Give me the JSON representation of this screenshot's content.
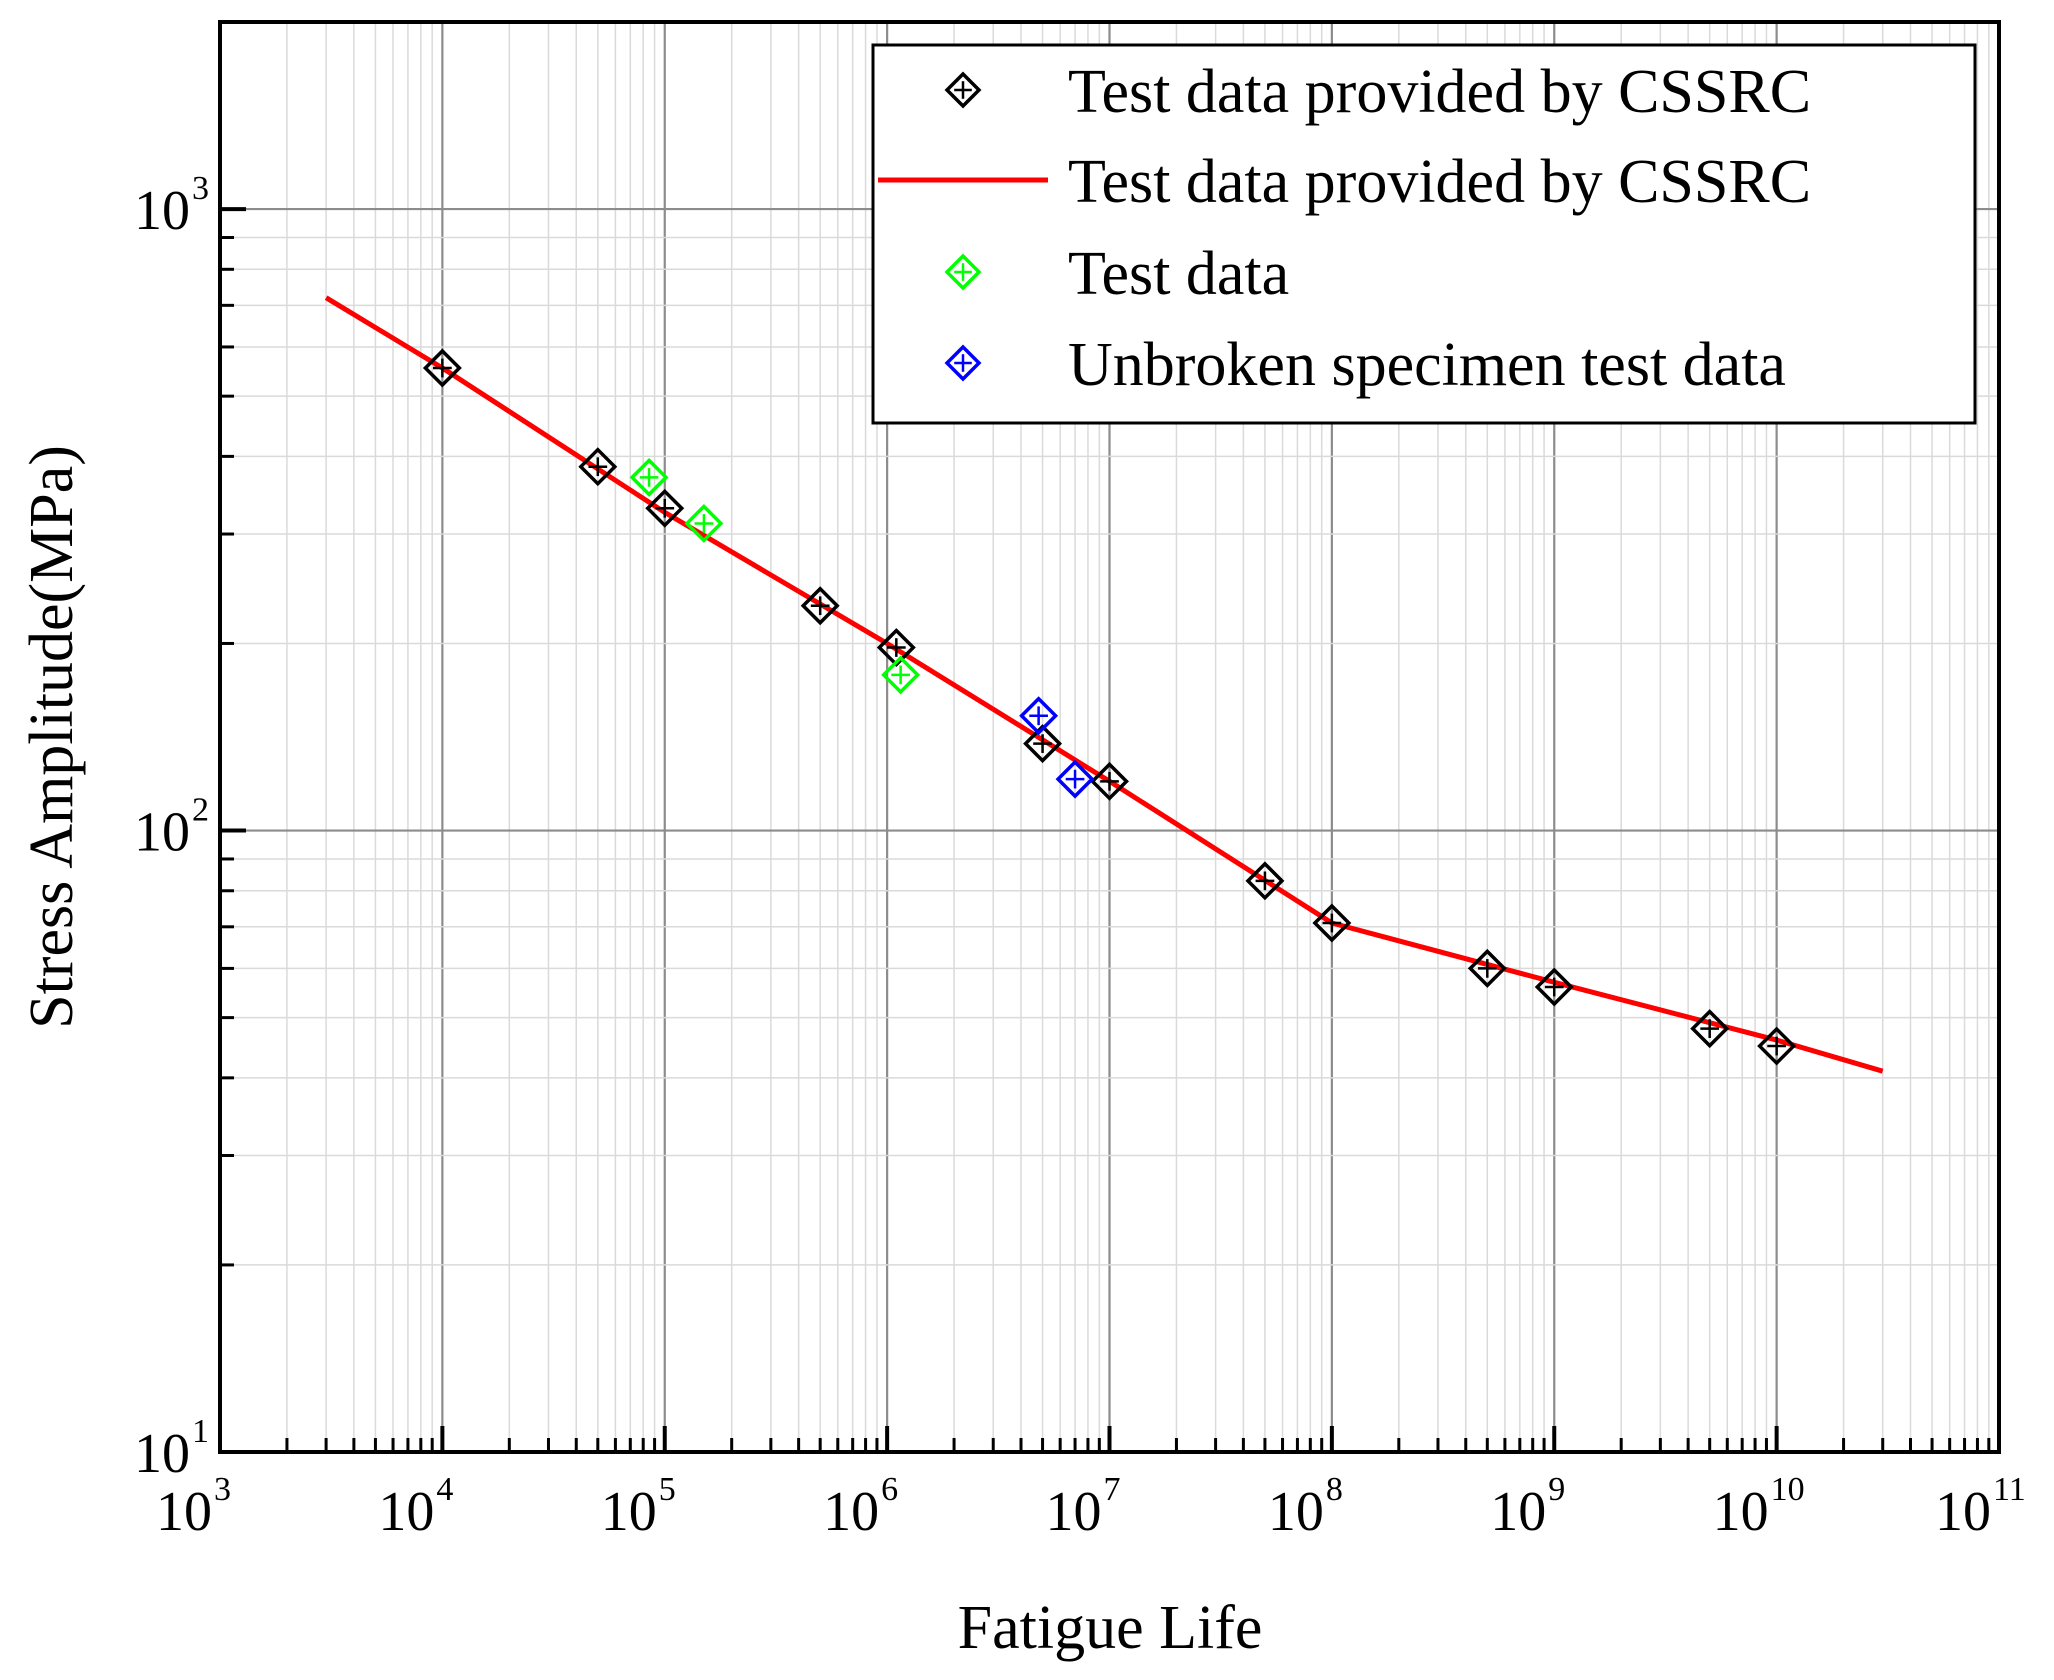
{
  "chart_data": {
    "type": "scatter",
    "title": "",
    "xlabel": "Fatigue Life",
    "ylabel": "Stress Amplitude(MPa)",
    "xscale": "log",
    "yscale": "log",
    "xlim": [
      1000,
      100000000000
    ],
    "ylim": [
      10,
      2000
    ],
    "grid": true,
    "legend_position": "top-right",
    "x_ticks": [
      {
        "base": "10",
        "exp": "3"
      },
      {
        "base": "10",
        "exp": "4"
      },
      {
        "base": "10",
        "exp": "5"
      },
      {
        "base": "10",
        "exp": "6"
      },
      {
        "base": "10",
        "exp": "7"
      },
      {
        "base": "10",
        "exp": "8"
      },
      {
        "base": "10",
        "exp": "9"
      },
      {
        "base": "10",
        "exp": "10"
      },
      {
        "base": "10",
        "exp": "11"
      }
    ],
    "y_ticks": [
      {
        "base": "10",
        "exp": "1"
      },
      {
        "base": "10",
        "exp": "2"
      },
      {
        "base": "10",
        "exp": "3"
      }
    ],
    "series": [
      {
        "name": "Test data provided by CSSRC",
        "kind": "scatter",
        "marker": "diamond-cross",
        "color": "#000000",
        "points": [
          [
            10000,
            555
          ],
          [
            50000,
            385
          ],
          [
            100000,
            330
          ],
          [
            500000,
            230
          ],
          [
            1100000,
            197
          ],
          [
            5000000,
            138
          ],
          [
            10000000,
            120
          ],
          [
            50000000,
            83
          ],
          [
            100000000,
            71
          ],
          [
            500000000,
            60
          ],
          [
            1000000000,
            56
          ],
          [
            5000000000,
            48
          ],
          [
            10000000000,
            45
          ]
        ]
      },
      {
        "name": "Test data provided by CSSRC",
        "kind": "line",
        "color": "#ff0000",
        "points": [
          [
            3000,
            720
          ],
          [
            10000,
            555
          ],
          [
            100000,
            325
          ],
          [
            1000000,
            200
          ],
          [
            10000000,
            120
          ],
          [
            100000000,
            71
          ],
          [
            1000000000,
            57
          ],
          [
            10000000000,
            46
          ],
          [
            30000000000,
            41
          ]
        ]
      },
      {
        "name": "Test data",
        "kind": "scatter",
        "marker": "diamond-cross",
        "color": "#00ff00",
        "points": [
          [
            85000,
            370
          ],
          [
            150000,
            312
          ],
          [
            1150000,
            178
          ]
        ]
      },
      {
        "name": "Unbroken specimen test data",
        "kind": "scatter",
        "marker": "diamond-cross",
        "color": "#0000ff",
        "points": [
          [
            4800000,
            153
          ],
          [
            7000000,
            121
          ]
        ]
      }
    ]
  }
}
